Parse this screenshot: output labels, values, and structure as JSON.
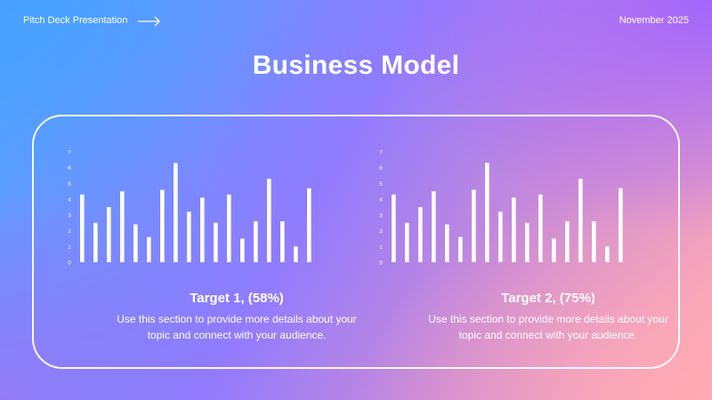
{
  "header": {
    "deck_label": "Pitch Deck Presentation",
    "arrow_icon": "right-arrow-icon",
    "date": "November 2025"
  },
  "title": "Business Model",
  "targets": [
    {
      "title": "Target 1, (58%)",
      "text1": "Use this section to provide more details about your",
      "text2": "topic and connect with your audience."
    },
    {
      "title": "Target 2, (75%)",
      "text1": "Use this section to provide more details about your",
      "text2": "topic and connect with your audience."
    }
  ],
  "chart_data": [
    {
      "type": "bar",
      "ylim": [
        0,
        7
      ],
      "yticks": [
        "0",
        "1",
        "2",
        "3",
        "4",
        "5",
        "6",
        "7"
      ],
      "values": [
        4.3,
        2.5,
        3.5,
        4.5,
        2.4,
        1.6,
        4.6,
        6.3,
        3.2,
        4.1,
        2.5,
        4.3,
        1.5,
        2.6,
        5.3,
        2.6,
        1.0,
        4.7
      ]
    },
    {
      "type": "bar",
      "ylim": [
        0,
        7
      ],
      "yticks": [
        "0",
        "1",
        "2",
        "3",
        "4",
        "5",
        "6",
        "7"
      ],
      "values": [
        4.3,
        2.5,
        3.5,
        4.5,
        2.4,
        1.6,
        4.6,
        6.3,
        3.2,
        4.1,
        2.5,
        4.3,
        1.5,
        2.6,
        5.3,
        2.6,
        1.0,
        4.7
      ]
    }
  ],
  "colors": {
    "text": "#ffffff",
    "bar": "#ffffff",
    "panel_border": "#ffffff"
  }
}
